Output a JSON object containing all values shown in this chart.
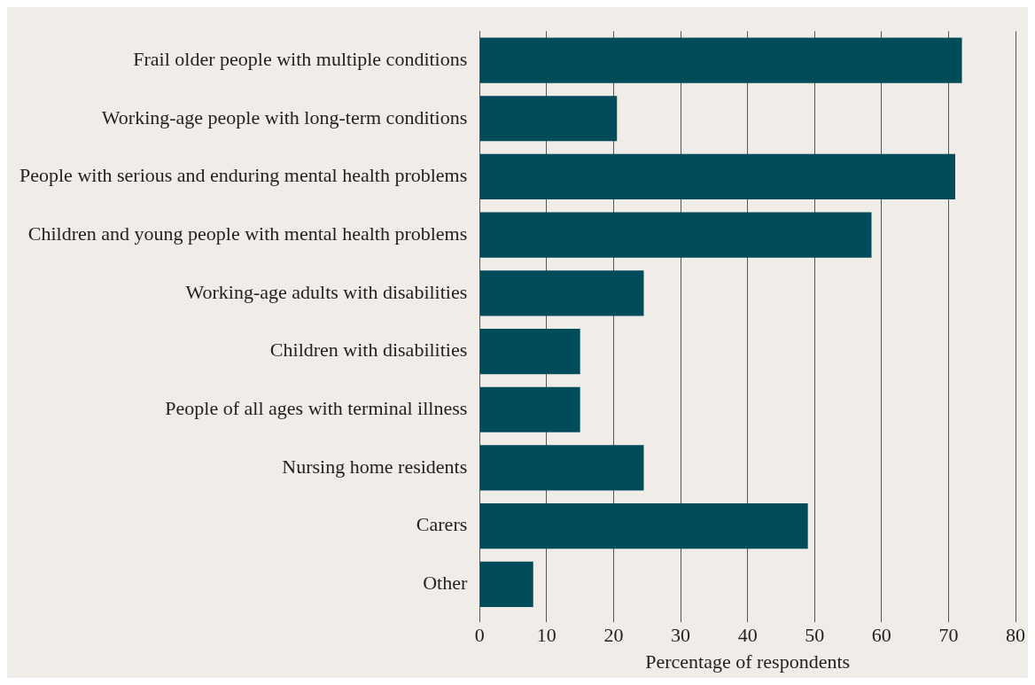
{
  "chart_data": {
    "type": "bar",
    "orientation": "horizontal",
    "xlabel": "Percentage of respondents",
    "categories": [
      "Frail older people with multiple conditions",
      "Working-age people with long-term conditions",
      "People with serious and enduring mental health problems",
      "Children and young people with mental health problems",
      "Working-age adults with disabilities",
      "Children with disabilities",
      "People of all ages with terminal illness",
      "Nursing home residents",
      "Carers",
      "Other"
    ],
    "values": [
      72,
      20.5,
      71,
      58.5,
      24.5,
      15,
      15,
      24.5,
      49,
      8
    ],
    "color": "#004c5a",
    "xlim": [
      0,
      80
    ],
    "xticks": [
      0,
      10,
      20,
      30,
      40,
      50,
      60,
      70,
      80
    ],
    "grid": "x",
    "legend": false
  }
}
